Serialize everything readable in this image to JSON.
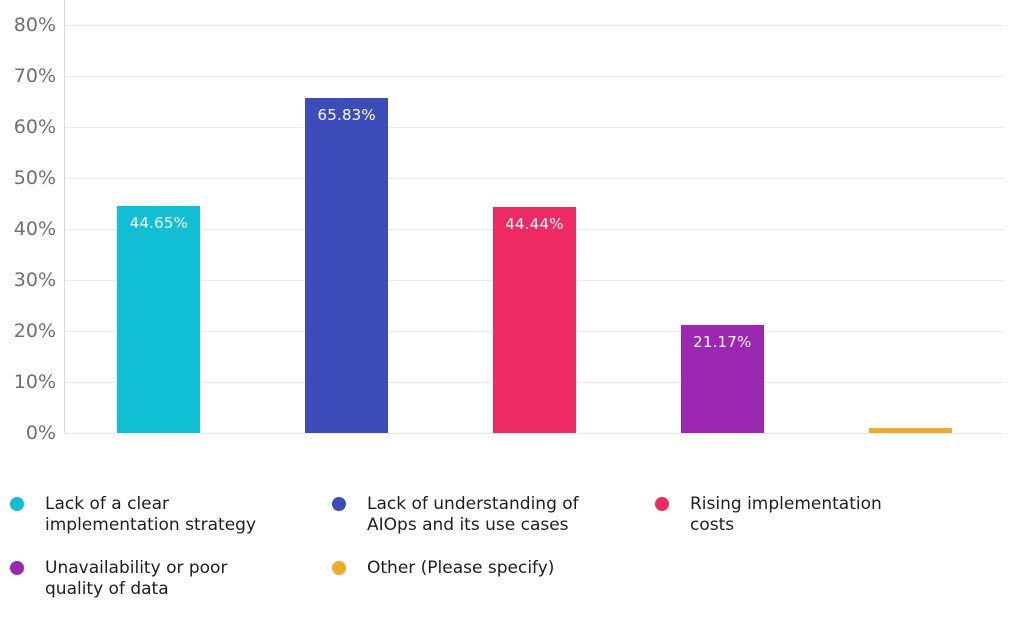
{
  "chart_data": {
    "type": "bar",
    "title": "",
    "xlabel": "",
    "ylabel": "",
    "ylim": [
      0,
      85
    ],
    "grid": true,
    "legend_position": "bottom",
    "yticks": [
      0,
      10,
      20,
      30,
      40,
      50,
      60,
      70,
      80
    ],
    "ytick_labels": [
      "0%",
      "10%",
      "20%",
      "30%",
      "40%",
      "50%",
      "60%",
      "70%",
      "80%"
    ],
    "categories": [
      "Lack of a clear implementation strategy",
      "Lack of understanding of AIOps and its use cases",
      "Rising implementation costs",
      "Unavailability or poor quality of data",
      "Other (Please specify)"
    ],
    "values": [
      44.65,
      65.83,
      44.44,
      21.17,
      1.0
    ],
    "bar_labels": [
      "44.65%",
      "65.83%",
      "44.44%",
      "21.17%",
      ""
    ],
    "colors": [
      "#10bfd4",
      "#3c4cba",
      "#ed2a62",
      "#9c27b0",
      "#efa92b"
    ],
    "legend_items": [
      {
        "lines": [
          "Lack of a clear",
          "implementation strategy"
        ],
        "color": "#10bfd4"
      },
      {
        "lines": [
          "Lack of understanding of",
          "AIOps and its use cases"
        ],
        "color": "#3c4cba"
      },
      {
        "lines": [
          "Rising implementation",
          "costs"
        ],
        "color": "#ed2a62"
      },
      {
        "lines": [
          "Unavailability or poor",
          "quality of data"
        ],
        "color": "#9c27b0"
      },
      {
        "lines": [
          "Other (Please specify)"
        ],
        "color": "#efa92b"
      }
    ]
  },
  "theme": {
    "background": "#ffffff",
    "grid_color": "#eaeaea",
    "axis_line_color": "#d7d7d7",
    "tick_label_color": "#6f6f6f",
    "bar_label_color": "#ffffff",
    "legend_text_color": "#1e1e1e"
  }
}
